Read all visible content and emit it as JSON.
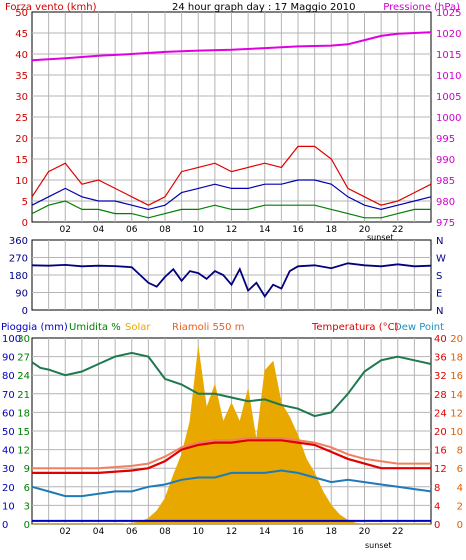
{
  "chart_data": [
    {
      "type": "line",
      "title": "24 hour graph day : 17 Maggio 2010",
      "left_axis_label": "Forza vento (kmh)",
      "right_axis_label": "Pressione (hPa)",
      "x_ticks": [
        "02",
        "04",
        "06",
        "08",
        "10",
        "12",
        "14",
        "16",
        "18",
        "20",
        "22"
      ],
      "x_annotation": "sunset",
      "y_left_ticks": [
        "0",
        "5",
        "10",
        "15",
        "20",
        "25",
        "30",
        "35",
        "40",
        "45",
        "50"
      ],
      "y_right_ticks": [
        "975",
        "980",
        "985",
        "990",
        "995",
        "1000",
        "1005",
        "1010",
        "1015",
        "1020",
        "1025"
      ],
      "ylim_left": [
        0,
        50
      ],
      "ylim_right": [
        975,
        1025
      ],
      "xlim": [
        0,
        24
      ],
      "grid": true,
      "colors": {
        "gust": "#e00000",
        "wind": "#0000b0",
        "min": "#008000",
        "pressure": "#e000e0",
        "left_label": "#d00000",
        "right_label": "#d000d0"
      },
      "series": [
        {
          "name": "gust",
          "axis": "left",
          "x": [
            0,
            1,
            2,
            3,
            4,
            5,
            6,
            7,
            8,
            9,
            10,
            11,
            12,
            13,
            14,
            15,
            16,
            17,
            18,
            19,
            20,
            21,
            22,
            23,
            24
          ],
          "values": [
            6,
            12,
            14,
            9,
            10,
            8,
            6,
            4,
            6,
            12,
            13,
            14,
            12,
            13,
            14,
            13,
            18,
            18,
            15,
            8,
            6,
            4,
            5,
            7,
            9
          ]
        },
        {
          "name": "wind",
          "axis": "left",
          "x": [
            0,
            1,
            2,
            3,
            4,
            5,
            6,
            7,
            8,
            9,
            10,
            11,
            12,
            13,
            14,
            15,
            16,
            17,
            18,
            19,
            20,
            21,
            22,
            23,
            24
          ],
          "values": [
            4,
            6,
            8,
            6,
            5,
            5,
            4,
            3,
            4,
            7,
            8,
            9,
            8,
            8,
            9,
            9,
            10,
            10,
            9,
            6,
            4,
            3,
            4,
            5,
            6
          ]
        },
        {
          "name": "min",
          "axis": "left",
          "x": [
            0,
            1,
            2,
            3,
            4,
            5,
            6,
            7,
            8,
            9,
            10,
            11,
            12,
            13,
            14,
            15,
            16,
            17,
            18,
            19,
            20,
            21,
            22,
            23,
            24
          ],
          "values": [
            2,
            4,
            5,
            3,
            3,
            2,
            2,
            1,
            2,
            3,
            3,
            4,
            3,
            3,
            4,
            4,
            4,
            4,
            3,
            2,
            1,
            1,
            2,
            3,
            3
          ]
        },
        {
          "name": "pressure",
          "axis": "right",
          "x": [
            0,
            2,
            4,
            6,
            8,
            10,
            12,
            14,
            16,
            18,
            19,
            20,
            21,
            22,
            23,
            24
          ],
          "values": [
            1013.5,
            1014,
            1014.6,
            1015,
            1015.5,
            1015.8,
            1016,
            1016.4,
            1016.8,
            1017,
            1017.3,
            1018.3,
            1019.3,
            1019.8,
            1020,
            1020.2
          ]
        }
      ]
    },
    {
      "type": "line",
      "y_left_ticks": [
        "0",
        "90",
        "180",
        "270",
        "360"
      ],
      "y_right_ticks": [
        "N",
        "E",
        "S",
        "W",
        "N"
      ],
      "ylim": [
        0,
        360
      ],
      "xlim": [
        0,
        24
      ],
      "grid": true,
      "colors": {
        "direction": "#000080"
      },
      "series": [
        {
          "name": "direction",
          "x": [
            0,
            1,
            2,
            3,
            4,
            5,
            6,
            6.5,
            7,
            7.5,
            8,
            8.5,
            9,
            9.5,
            10,
            10.5,
            11,
            11.5,
            12,
            12.5,
            13,
            13.5,
            14,
            14.5,
            15,
            15.5,
            16,
            17,
            18,
            19,
            20,
            21,
            22,
            23,
            24
          ],
          "values": [
            230,
            228,
            232,
            225,
            228,
            226,
            220,
            180,
            140,
            120,
            170,
            210,
            150,
            200,
            190,
            160,
            200,
            180,
            130,
            210,
            100,
            140,
            70,
            130,
            110,
            200,
            225,
            230,
            215,
            240,
            230,
            225,
            235,
            225,
            228
          ]
        }
      ]
    },
    {
      "type": "area",
      "left_labels": [
        "Pioggia (mm)",
        "Umidita %",
        "Solar",
        "Riamoli 550 m"
      ],
      "right_labels": [
        "Temperatura (°C)",
        "Dew Point"
      ],
      "x_ticks": [
        "02",
        "04",
        "06",
        "08",
        "10",
        "12",
        "14",
        "16",
        "18",
        "20",
        "22"
      ],
      "x_annotation": "sunset",
      "y_left_outer_ticks": [
        "0",
        "10",
        "20",
        "30",
        "40",
        "50",
        "60",
        "70",
        "80",
        "90",
        "100"
      ],
      "y_left_inner_ticks": [
        "0",
        "3",
        "6",
        "9",
        "12",
        "15",
        "18",
        "21",
        "24",
        "27",
        "30"
      ],
      "y_right_inner_ticks": [
        "0",
        "4",
        "8",
        "12",
        "16",
        "20",
        "24",
        "28",
        "32",
        "36",
        "40"
      ],
      "y_right_outer_ticks": [
        "0",
        "2",
        "4",
        "6",
        "8",
        "10",
        "12",
        "14",
        "16",
        "18",
        "20"
      ],
      "ylim_humidity": [
        0,
        100
      ],
      "ylim_temperature": [
        0,
        40
      ],
      "ylim_rain": [
        0,
        30
      ],
      "xlim": [
        0,
        24
      ],
      "grid": true,
      "colors": {
        "rain": "#0000c0",
        "humidity": "#1e7a4e",
        "solar": "#e8a800",
        "temperature": "#e00000",
        "dewpoint": "#3a6ea5",
        "temp_label": "#e00000",
        "dew_label": "#1e90c0",
        "riamoli_label": "#e86020",
        "solar_label": "#e8a800",
        "humidity_label": "#008000",
        "rain_label": "#0000c0"
      },
      "series": [
        {
          "name": "humidity",
          "x": [
            0,
            0.5,
            1,
            2,
            3,
            4,
            5,
            6,
            7,
            8,
            9,
            10,
            11,
            12,
            13,
            14,
            15,
            16,
            17,
            18,
            19,
            20,
            21,
            22,
            23,
            24
          ],
          "values": [
            87,
            84,
            83,
            80,
            82,
            86,
            90,
            92,
            90,
            78,
            75,
            70,
            70,
            68,
            66,
            67,
            64,
            62,
            58,
            60,
            70,
            82,
            88,
            90,
            88,
            86
          ]
        },
        {
          "name": "temperature",
          "x": [
            0,
            2,
            4,
            6,
            7,
            8,
            9,
            10,
            11,
            12,
            13,
            14,
            15,
            16,
            17,
            18,
            19,
            20,
            21,
            22,
            23,
            24
          ],
          "values": [
            11,
            11,
            11,
            11.5,
            12,
            13.5,
            16,
            17,
            17.5,
            17.5,
            18,
            18,
            18,
            17.5,
            17,
            15.5,
            14,
            13,
            12,
            12,
            12,
            12
          ]
        },
        {
          "name": "riamoli",
          "x": [
            0,
            2,
            4,
            6,
            7,
            8,
            9,
            10,
            11,
            12,
            13,
            14,
            15,
            16,
            17,
            18,
            19,
            20,
            21,
            22,
            23,
            24
          ],
          "values": [
            12,
            12,
            12,
            12.5,
            13,
            14.5,
            16.5,
            17.5,
            18,
            18,
            18.5,
            18.5,
            18.5,
            18,
            17.5,
            16.5,
            15,
            14,
            13.5,
            13,
            13,
            13
          ]
        },
        {
          "name": "dewpoint",
          "x": [
            0,
            1,
            2,
            3,
            4,
            5,
            6,
            7,
            8,
            9,
            10,
            11,
            12,
            13,
            14,
            15,
            16,
            17,
            18,
            19,
            20,
            21,
            22,
            23,
            24
          ],
          "values": [
            8,
            7,
            6,
            6,
            6.5,
            7,
            7,
            8,
            8.5,
            9.5,
            10,
            10,
            11,
            11,
            11,
            11.5,
            11,
            10,
            9,
            9.5,
            9,
            8.5,
            8,
            7.5,
            7
          ]
        },
        {
          "name": "solar",
          "x": [
            0,
            5.5,
            6,
            6.5,
            7,
            7.5,
            8,
            8.5,
            9,
            9.5,
            10,
            10.5,
            11,
            11.5,
            12,
            12.5,
            13,
            13.5,
            14,
            14.5,
            15,
            15.5,
            16,
            16.5,
            17,
            17.5,
            18,
            18.5,
            19,
            19.5,
            20,
            24
          ],
          "values": [
            0,
            0,
            2,
            5,
            12,
            28,
            55,
            105,
            150,
            220,
            380,
            250,
            300,
            220,
            260,
            220,
            290,
            180,
            330,
            350,
            260,
            230,
            190,
            140,
            110,
            70,
            40,
            20,
            8,
            2,
            0,
            0
          ]
        },
        {
          "name": "rain",
          "x": [
            0,
            24
          ],
          "values": [
            0.5,
            0.5
          ]
        }
      ]
    }
  ]
}
